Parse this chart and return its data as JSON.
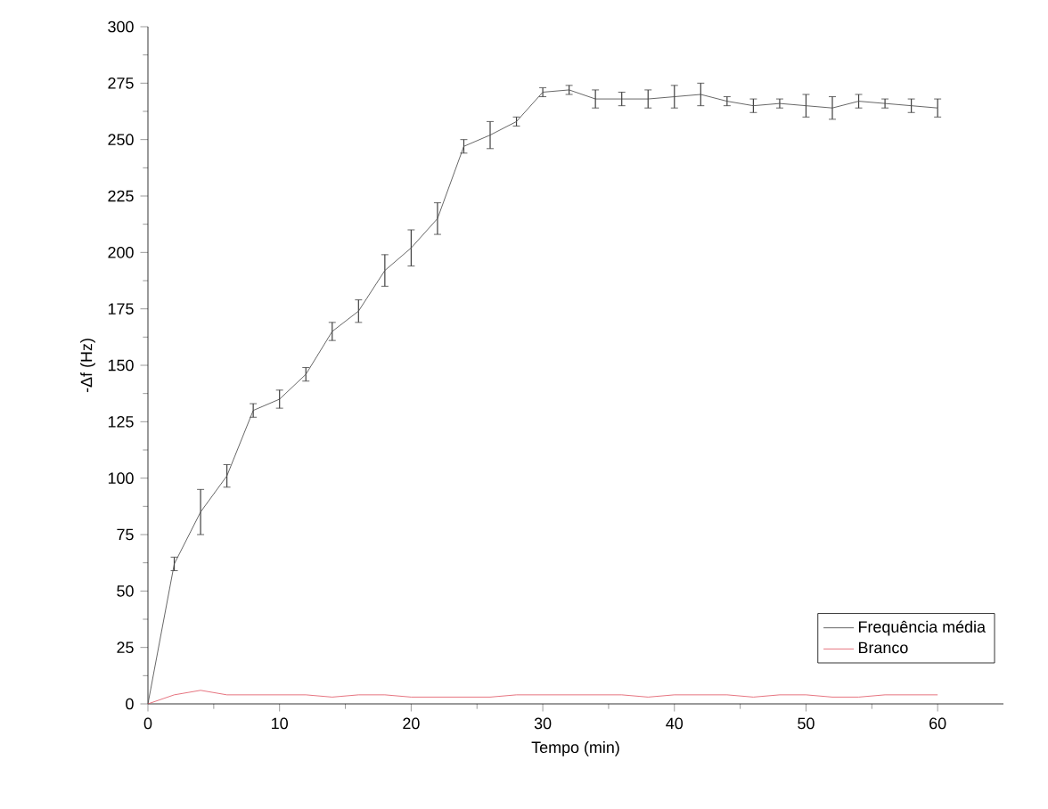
{
  "chart_data": {
    "type": "line",
    "xlabel": "Tempo (min)",
    "ylabel": "-Δf (Hz)",
    "x": [
      0,
      2,
      4,
      6,
      8,
      10,
      12,
      14,
      16,
      18,
      20,
      22,
      24,
      26,
      28,
      30,
      32,
      34,
      36,
      38,
      40,
      42,
      44,
      46,
      48,
      50,
      52,
      54,
      56,
      58,
      60
    ],
    "series": [
      {
        "name": "Frequência média",
        "color": "#404040",
        "values": [
          0,
          62,
          85,
          101,
          130,
          135,
          146,
          165,
          174,
          192,
          202,
          215,
          247,
          252,
          258,
          271,
          272,
          268,
          268,
          268,
          269,
          270,
          267,
          265,
          266,
          265,
          264,
          267,
          266,
          265,
          264
        ],
        "errors": [
          null,
          3,
          10,
          5,
          3,
          4,
          3,
          4,
          5,
          7,
          8,
          7,
          3,
          6,
          2,
          2,
          2,
          4,
          3,
          4,
          5,
          5,
          2,
          3,
          2,
          5,
          5,
          3,
          2,
          3,
          4
        ]
      },
      {
        "name": "Branco",
        "color": "#e05060",
        "values": [
          0,
          4,
          6,
          4,
          4,
          4,
          4,
          3,
          4,
          4,
          3,
          3,
          3,
          3,
          4,
          4,
          4,
          4,
          4,
          3,
          4,
          4,
          4,
          3,
          4,
          4,
          3,
          3,
          4,
          4,
          4
        ]
      }
    ],
    "xlim": [
      0,
      65
    ],
    "ylim": [
      0,
      300
    ],
    "xticks": [
      0,
      10,
      20,
      30,
      40,
      50,
      60
    ],
    "yticks": [
      0,
      25,
      50,
      75,
      100,
      125,
      150,
      175,
      200,
      225,
      250,
      275,
      300
    ],
    "grid": false,
    "legend": "bottom right",
    "line_style": "solid"
  }
}
